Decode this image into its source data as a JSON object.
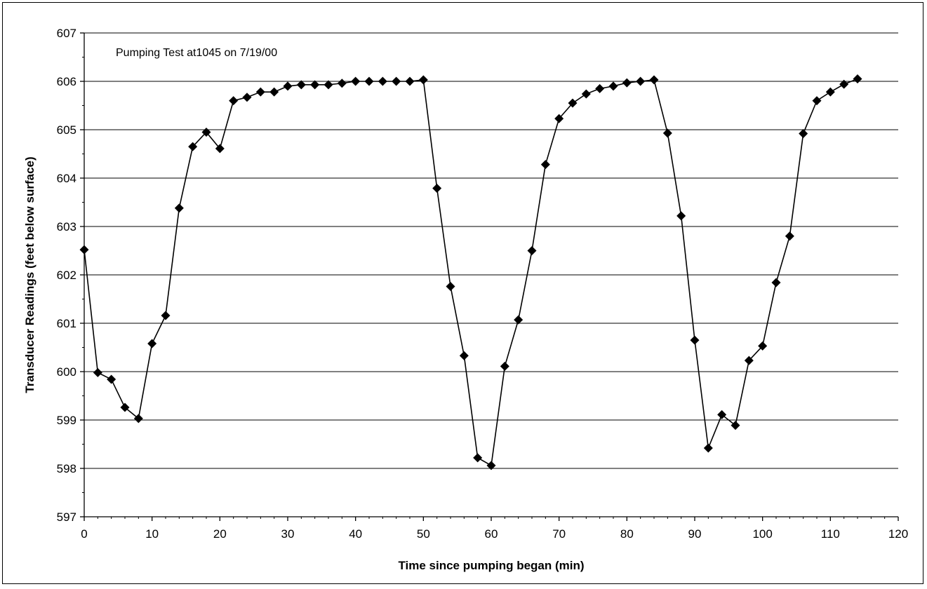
{
  "chart_data": {
    "type": "line",
    "title": "",
    "annotation": "Pumping Test at1045 on 7/19/00",
    "xlabel": "Time since pumping began (min)",
    "ylabel": "Transducer Readings (feet below surface)",
    "xlim": [
      0,
      120
    ],
    "ylim": [
      597,
      607
    ],
    "x_ticks": [
      0,
      10,
      20,
      30,
      40,
      50,
      60,
      70,
      80,
      90,
      100,
      110,
      120
    ],
    "y_ticks": [
      597,
      598,
      599,
      600,
      601,
      602,
      603,
      604,
      605,
      606,
      607
    ],
    "grid": "horizontal",
    "marker": "diamond",
    "color": "#000000",
    "series": [
      {
        "x": [
          0,
          2,
          4,
          6,
          8,
          10,
          12,
          14,
          16,
          18,
          20,
          22,
          24,
          26,
          28,
          30,
          32,
          34,
          36,
          38,
          40,
          42,
          44,
          46,
          48,
          50,
          52,
          54,
          56,
          58,
          60,
          62,
          64,
          66,
          68,
          70,
          72,
          74,
          76,
          78,
          80,
          82,
          84,
          86,
          88,
          90,
          92,
          94,
          96,
          98,
          100,
          102,
          104,
          106,
          108,
          110,
          112,
          114
        ],
        "y": [
          602.52,
          599.98,
          599.84,
          599.26,
          599.03,
          600.58,
          601.16,
          603.38,
          604.65,
          604.95,
          604.61,
          605.6,
          605.67,
          605.78,
          605.78,
          605.9,
          605.93,
          605.93,
          605.93,
          605.96,
          606.0,
          606.0,
          606.0,
          606.0,
          606.0,
          606.03,
          603.79,
          601.76,
          600.33,
          598.22,
          598.06,
          600.11,
          601.07,
          602.5,
          604.28,
          605.23,
          605.55,
          605.74,
          605.85,
          605.9,
          605.97,
          606.0,
          606.03,
          604.93,
          603.22,
          600.65,
          598.42,
          599.11,
          598.89,
          600.23,
          600.53,
          601.84,
          602.8,
          604.92,
          605.6,
          605.78,
          605.94,
          606.05
        ]
      }
    ]
  }
}
